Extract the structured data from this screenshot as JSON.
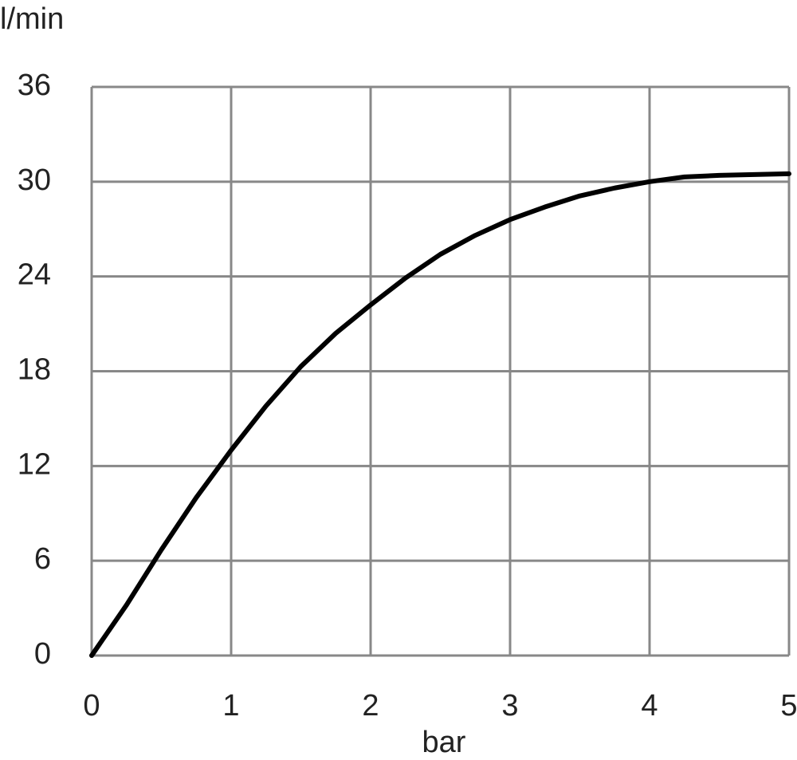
{
  "chart_data": {
    "type": "line",
    "y_label": "l/min",
    "x_label": "bar",
    "x": [
      0,
      0.25,
      0.5,
      0.75,
      1,
      1.25,
      1.5,
      1.75,
      2,
      2.25,
      2.5,
      2.75,
      3,
      3.25,
      3.5,
      3.75,
      4,
      4.25,
      4.5,
      4.75,
      5
    ],
    "series": [
      {
        "color": "#000000",
        "values": [
          0,
          3.2,
          6.7,
          10,
          13,
          15.8,
          18.3,
          20.4,
          22.2,
          23.9,
          25.4,
          26.6,
          27.6,
          28.4,
          29.1,
          29.6,
          30,
          30.3,
          30.4,
          30.45,
          30.5
        ]
      }
    ],
    "xlim": [
      0,
      5
    ],
    "xticks": [
      0,
      1,
      2,
      3,
      4,
      5
    ],
    "ylim": [
      0,
      36
    ],
    "yticks": [
      0,
      6,
      12,
      18,
      24,
      30,
      36
    ],
    "grid": true
  }
}
